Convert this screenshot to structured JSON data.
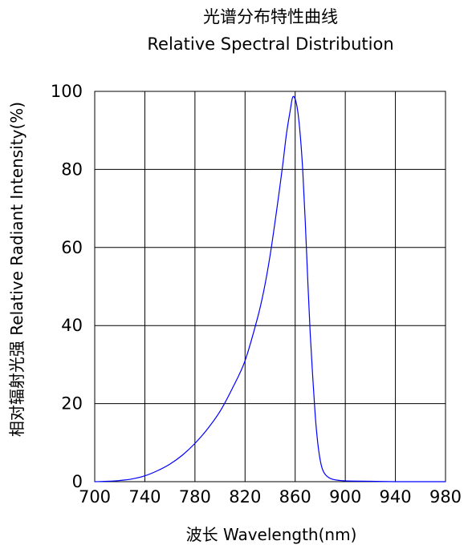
{
  "chart_data": {
    "type": "line",
    "title": "光谱分布特性曲线",
    "subtitle": "Relative Spectral Distribution",
    "xlabel": "波长  Wavelength(nm)",
    "ylabel": "相对辐射光强  Relative  Radiant  Intensity(%)",
    "xlim": [
      700,
      980
    ],
    "ylim": [
      0,
      100
    ],
    "x_ticks": [
      700,
      740,
      780,
      820,
      860,
      900,
      940,
      980
    ],
    "y_ticks": [
      0,
      20,
      40,
      60,
      80,
      100
    ],
    "grid": true,
    "series": [
      {
        "color": "#0000ff",
        "x": [
          700,
          710,
          720,
          730,
          740,
          750,
          760,
          770,
          780,
          790,
          800,
          810,
          820,
          830,
          835,
          840,
          845,
          850,
          853,
          856,
          858,
          860,
          862,
          864,
          866,
          868,
          870,
          872,
          874,
          876,
          878,
          880,
          882,
          885,
          890,
          900,
          920,
          940,
          960,
          980
        ],
        "y": [
          0,
          0.1,
          0.3,
          0.7,
          1.5,
          2.8,
          4.5,
          6.8,
          9.8,
          13.5,
          18,
          24,
          31,
          42,
          49,
          58,
          69,
          81,
          89,
          95,
          98.5,
          98,
          95,
          89,
          80,
          67,
          52,
          38,
          27,
          17,
          10,
          5.5,
          3,
          1.5,
          0.6,
          0.2,
          0.1,
          0,
          0,
          0
        ]
      }
    ]
  }
}
